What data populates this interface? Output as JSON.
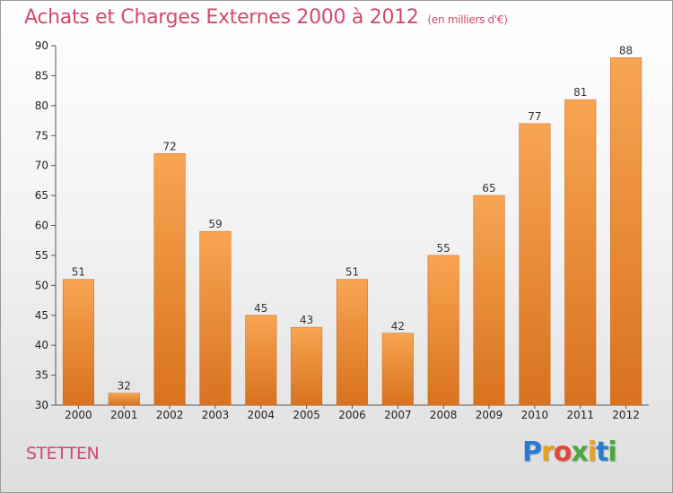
{
  "title": "Achats et Charges Externes 2000 à 2012",
  "subtitle": "(en milliers d'€)",
  "city": "STETTEN",
  "logo": {
    "letters": [
      "P",
      "r",
      "o",
      "x",
      "i",
      "t",
      "i"
    ],
    "colors": [
      "#2a7bd0",
      "#e9a01c",
      "#e6463a",
      "#4aa83c",
      "#e9a01c",
      "#2a7bd0",
      "#4aa83c"
    ]
  },
  "colors": {
    "accent": "#d04a6e",
    "bar_light": "#f8a552",
    "bar_dark": "#d8721e"
  },
  "chart_data": {
    "type": "bar",
    "categories": [
      "2000",
      "2001",
      "2002",
      "2003",
      "2004",
      "2005",
      "2006",
      "2007",
      "2008",
      "2009",
      "2010",
      "2011",
      "2012"
    ],
    "values": [
      51,
      32,
      72,
      59,
      45,
      43,
      51,
      42,
      55,
      65,
      77,
      81,
      88
    ],
    "yticks": [
      30,
      35,
      40,
      45,
      50,
      55,
      60,
      65,
      70,
      75,
      80,
      85,
      90
    ],
    "ylim": [
      30,
      90
    ],
    "grid": false,
    "legend": "none"
  }
}
